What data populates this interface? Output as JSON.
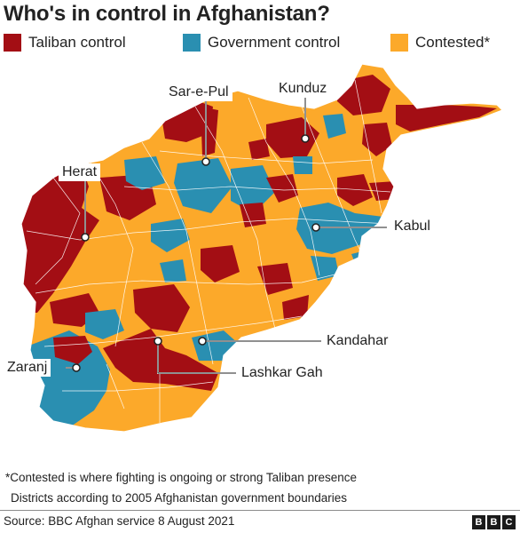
{
  "title": "Who's in control in Afghanistan?",
  "legend": [
    {
      "label": "Taliban control",
      "color": "#a30e14"
    },
    {
      "label": "Government control",
      "color": "#2a8fb1"
    },
    {
      "label": "Contested*",
      "color": "#fca92a"
    }
  ],
  "cities": {
    "sar_e_pul": "Sar-e-Pul",
    "kunduz": "Kunduz",
    "herat": "Herat",
    "kabul": "Kabul",
    "kandahar": "Kandahar",
    "lashkar_gah": "Lashkar Gah",
    "zaranj": "Zaranj"
  },
  "footnotes": {
    "contested": "*Contested is where fighting is ongoing or strong Taliban presence",
    "districts": "Districts according to 2005 Afghanistan government boundaries"
  },
  "source": "Source: BBC Afghan service 8 August 2021",
  "logo": {
    "letters": [
      "B",
      "B",
      "C"
    ]
  }
}
